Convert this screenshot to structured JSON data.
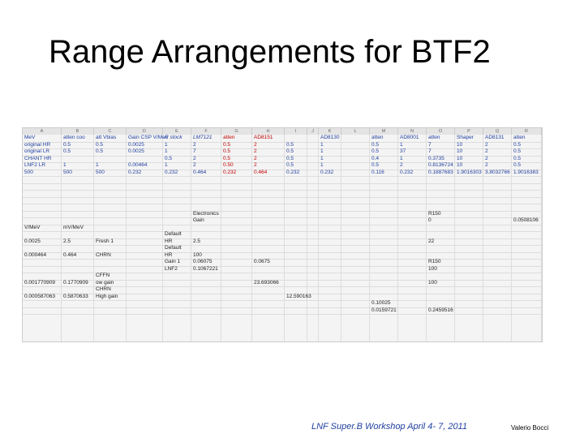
{
  "header": {
    "title": "Range Arrangements for BTF2"
  },
  "sheet": {
    "columns": [
      "A",
      "B",
      "C",
      "D",
      "E",
      "F",
      "G",
      "H",
      "I",
      "J",
      "K",
      "L",
      "M",
      "N",
      "O",
      "P",
      "Q",
      "R"
    ],
    "rows": [
      {
        "A": "MeV",
        "B": "atten coo",
        "C": "att Vbias",
        "D": "Gain CSP V/Mev",
        "E": "R stock",
        "F": "LM7121",
        "G": "atten",
        "H": "AD8151",
        "K": "AD8130",
        "M": "atten",
        "N": "AD8001",
        "O": "atten",
        "P": "Shaper",
        "Q": "AD8131",
        "R": "atten"
      },
      {
        "A": "original HR",
        "B": "0.5",
        "C": "0.5",
        "D": "0.0025",
        "E": "1",
        "F": "2",
        "G": "0.5",
        "H": "2",
        "I": "0.5",
        "K": "1",
        "M": "0.5",
        "N": "1",
        "O": "7",
        "P": "10",
        "Q": "2",
        "R": "0.5"
      },
      {
        "A": "original LR",
        "B": "0.5",
        "C": "0.5",
        "D": "0.0025",
        "E": "1",
        "F": "7",
        "G": "0.5",
        "H": "2",
        "I": "0.5",
        "K": "1",
        "M": "0.5",
        "N": "37",
        "O": "7",
        "P": "10",
        "Q": "2",
        "R": "0.5"
      },
      {
        "A": "CHANT HR",
        "E": "0.5",
        "F": "2",
        "G": "0.5",
        "H": "2",
        "I": "0.5",
        "K": "1",
        "M": "0.4",
        "N": "1",
        "O": "0.3735",
        "P": "10",
        "Q": "2",
        "R": "0.5"
      },
      {
        "A": "LNF2 LR",
        "B": "1",
        "C": "1",
        "D": "0.00464",
        "E": "1",
        "F": "2",
        "G": "0.50",
        "H": "2",
        "I": "0.5",
        "K": "1",
        "M": "0.5",
        "N": "2",
        "O": "0.8136724",
        "P": "10",
        "Q": "2",
        "R": "0.5"
      },
      {
        "A": "500",
        "B": "500",
        "C": "500",
        "D": "0.232",
        "E": "0.232",
        "F": "0.464",
        "G": "0.232",
        "H": "0.464",
        "I": "0.232",
        "K": "0.232",
        "M": "0.116",
        "N": "0.232",
        "O": "0.1887683",
        "P": "1.9016303",
        "Q": "3.8032766",
        "R": "1.9016383"
      },
      {},
      {},
      {},
      {},
      {},
      {
        "F": "Electronics",
        "O": "R150"
      },
      {
        "F": "Gain",
        "O": "0",
        "R": "0.0508106"
      },
      {
        "A": "V/MeV",
        "B": "mV/MeV"
      },
      {
        "E": "Default"
      },
      {
        "A": "0.0025",
        "B": "2.5",
        "C": "Fresh 1",
        "E": "HR",
        "F": "2.5",
        "O": "22"
      },
      {
        "E": "Default"
      },
      {
        "A": "0.000464",
        "B": "0.464",
        "C": "CHRN",
        "E": "HR",
        "F": "100"
      },
      {
        "E": "Gain 1",
        "F": "0.06075",
        "H": "0.0675",
        "O": "R150"
      },
      {
        "E": "LNF2",
        "F": "0.1067221",
        "O": "100"
      },
      {
        "C": "CFFN"
      },
      {
        "A": "0.001770909",
        "B": "0.1770909",
        "C": "ow gain",
        "H": "23.693066",
        "O": "100"
      },
      {
        "C": "CHRN"
      },
      {
        "A": "0.000587063",
        "B": "0.5870633",
        "C": "High gain",
        "I": "12.590163"
      },
      {
        "M": "0.10025"
      },
      {
        "M": "0.0159721",
        "O": "0.2459516"
      }
    ]
  },
  "footer": {
    "event": "LNF  Super.B Workshop April 4- 7, 2011",
    "author": "Valerio Bocci"
  }
}
